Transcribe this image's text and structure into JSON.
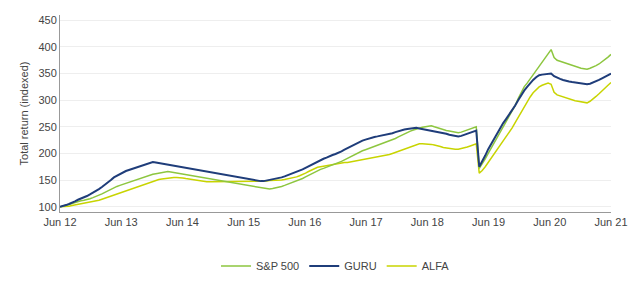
{
  "chart_data": {
    "type": "line",
    "ylabel": "Total return (indexed)",
    "x": [
      0,
      0.587,
      1.1739,
      1.7609,
      2.3478,
      2.9348,
      3.5217,
      4.1087,
      4.6957,
      5.2826,
      5.8696,
      6.4565,
      7.0435,
      7.6304,
      8.2174,
      8.8043,
      9.3913,
      9.9783,
      10.5652,
      11.1522,
      11.7391,
      12.3261,
      12.913,
      13.5,
      14.087,
      14.6739,
      15.2609,
      15.8478,
      16.4348,
      17.0217,
      17.6087,
      18.1957,
      18.7826,
      19.3696,
      19.9565,
      20.5435,
      21.1304,
      21.7174,
      22.3043,
      22.8913,
      23.4783,
      24.0652,
      24.6522,
      25.2391,
      25.8261,
      26.413,
      27,
      27.587,
      28.1739,
      28.7609,
      29.3478,
      29.9348,
      30.5217,
      31.1087,
      31.6957,
      32.2826,
      32.8696,
      33.4565,
      34.0435,
      34.6304,
      35.2174,
      35.8043,
      36.3913,
      36.9783,
      37.5652,
      38.1522,
      38.7391,
      39.3261,
      39.913,
      40.5,
      41.087,
      41.6739,
      42.2609,
      42.8478,
      43.4348,
      44.0217,
      44.6087,
      45.1957,
      45.7826,
      46.3696,
      46.9565,
      47.5435,
      48.1304,
      48.7174,
      49.3043,
      49.8913,
      50.4783,
      51.0652,
      51.6522,
      52.2391,
      52.8261,
      53.413,
      54,
      54.587,
      55.1739,
      55.7609,
      56.3478,
      56.9348,
      57.5217,
      58.1087,
      58.6957,
      59.2826,
      59.8696,
      60.4565,
      61.0435,
      61.6304,
      62.2174,
      62.8043,
      63.3913,
      63.9783,
      64.5652,
      65.1522,
      65.7391,
      66.3261,
      66.913,
      67.5,
      68.087,
      68.6739,
      69.2609,
      69.8478,
      70.4348,
      71.0217,
      71.6087,
      72.1957,
      72.7826,
      73.3696,
      73.9565,
      74.5435,
      75.1304,
      75.7174,
      76.3043,
      76.8913,
      77.4783,
      78.0652,
      78.6522,
      79.2391,
      79.8261,
      80.413,
      81,
      81.587,
      82.1739,
      82.7609,
      83.3478,
      83.9348,
      84.5217,
      85.1087,
      85.6957,
      86.2826,
      86.8696,
      87.4565,
      88.0435,
      88.6304,
      89.2174,
      89.8043,
      90.3913,
      90.9783,
      91.5652,
      92.1522,
      92.7391,
      93.3261,
      93.913,
      94.5,
      95.087,
      95.6739,
      96.2609,
      96.8478,
      97.4348,
      98.0217,
      98.6087,
      99.1957,
      99.7826,
      100.3696,
      100.9565,
      101.5435,
      102.1304,
      102.7174,
      103.3043,
      103.8913,
      104.4783,
      105.0652,
      105.6522,
      106.2391,
      106.8261,
      107.413,
      108
    ],
    "xlim": [
      0,
      108
    ],
    "xticks": [
      {
        "value": 0,
        "label": "Jun 12"
      },
      {
        "value": 12,
        "label": "Jun 13"
      },
      {
        "value": 24,
        "label": "Jun 14"
      },
      {
        "value": 36,
        "label": "Jun 15"
      },
      {
        "value": 48,
        "label": "Jun 16"
      },
      {
        "value": 60,
        "label": "Jun 17"
      },
      {
        "value": 72,
        "label": "Jun 18"
      },
      {
        "value": 84,
        "label": "Jun 19"
      },
      {
        "value": 96,
        "label": "Jun 20"
      },
      {
        "value": 108,
        "label": "Jun 21"
      }
    ],
    "ylim": [
      90,
      460
    ],
    "yticks": [
      100,
      150,
      200,
      250,
      300,
      350,
      400,
      450
    ],
    "grid": true,
    "legend": "bottom",
    "series": [
      {
        "name": "S&P 500",
        "color": "#8DC63F",
        "values": [
          100,
          101,
          102,
          104,
          106,
          108,
          110,
          111,
          112,
          113,
          115,
          117,
          119,
          121,
          124,
          127,
          130,
          133,
          136,
          138,
          140,
          142,
          144,
          146,
          148,
          150,
          152,
          154,
          156,
          158,
          160,
          161,
          162,
          163,
          164,
          165,
          166,
          165,
          164,
          163,
          162,
          161,
          160,
          159,
          158,
          157,
          156,
          155,
          154,
          153,
          152,
          151,
          150,
          149,
          148,
          147,
          146,
          145,
          144,
          143,
          142,
          141,
          140,
          139,
          138,
          137,
          136,
          135,
          134,
          133,
          133,
          134,
          135,
          136,
          138,
          140,
          142,
          144,
          146,
          148,
          150,
          153,
          156,
          159,
          162,
          165,
          168,
          170,
          172,
          174,
          176,
          178,
          180,
          182,
          185,
          188,
          191,
          194,
          197,
          200,
          203,
          205,
          207,
          209,
          211,
          213,
          215,
          217,
          219,
          221,
          223,
          225,
          228,
          231,
          234,
          237,
          240,
          242,
          244,
          246,
          248,
          249,
          250,
          251,
          252,
          250,
          248,
          246,
          244,
          243,
          242,
          241,
          240,
          239,
          240,
          242,
          244,
          246,
          248,
          250,
          172,
          180,
          190,
          200,
          210,
          218,
          228,
          238,
          248,
          258,
          268,
          278,
          290,
          303,
          315,
          325,
          332,
          340,
          348,
          355,
          363,
          370,
          378,
          386,
          395,
          380,
          375,
          373,
          371,
          369,
          367,
          365,
          363,
          361,
          360,
          359,
          358,
          360,
          362,
          365,
          368,
          372,
          376,
          381,
          386
        ]
      },
      {
        "name": "GURU",
        "color": "#1F3D7A",
        "values": [
          100,
          101,
          103,
          105,
          107,
          110,
          113,
          115,
          117,
          120,
          123,
          126,
          129,
          133,
          137,
          141,
          145,
          150,
          155,
          158,
          162,
          165,
          167,
          169,
          171,
          173,
          175,
          177,
          179,
          181,
          183,
          184,
          183,
          182,
          181,
          180,
          179,
          178,
          177,
          176,
          175,
          174,
          173,
          172,
          171,
          170,
          169,
          168,
          167,
          166,
          165,
          164,
          163,
          162,
          161,
          160,
          159,
          158,
          157,
          156,
          155,
          154,
          153,
          152,
          151,
          150,
          149,
          148,
          148,
          149,
          150,
          151,
          152,
          153,
          155,
          157,
          159,
          161,
          163,
          165,
          167,
          170,
          173,
          176,
          179,
          182,
          185,
          187,
          190,
          192,
          195,
          197,
          199,
          201,
          204,
          207,
          210,
          213,
          216,
          219,
          222,
          224,
          226,
          228,
          230,
          231,
          232,
          233,
          234,
          235,
          236,
          238,
          240,
          242,
          244,
          245,
          246,
          247,
          248,
          248,
          247,
          246,
          245,
          244,
          243,
          242,
          241,
          240,
          238,
          237,
          235,
          234,
          233,
          232,
          233,
          235,
          237,
          239,
          241,
          243,
          175,
          185,
          196,
          208,
          218,
          228,
          238,
          248,
          257,
          265,
          273,
          280,
          290,
          300,
          310,
          318,
          325,
          332,
          338,
          343,
          347,
          348,
          349,
          350,
          350,
          345,
          342,
          340,
          338,
          336,
          335,
          334,
          333,
          332,
          331,
          330,
          330,
          331,
          333,
          335,
          338,
          341,
          344,
          347,
          350
        ]
      },
      {
        "name": "ALFA",
        "color": "#C8D400",
        "values": [
          100,
          100,
          101,
          101,
          102,
          103,
          104,
          105,
          106,
          107,
          108,
          109,
          110,
          112,
          114,
          116,
          118,
          120,
          122,
          124,
          126,
          128,
          130,
          132,
          134,
          136,
          138,
          140,
          142,
          144,
          146,
          148,
          150,
          151,
          152,
          153,
          154,
          155,
          155,
          155,
          155,
          154,
          153,
          152,
          151,
          150,
          149,
          148,
          147,
          147,
          147,
          147,
          147,
          147,
          147,
          147,
          147,
          147,
          147,
          147,
          147,
          147,
          147,
          147,
          147,
          148,
          148,
          148,
          148,
          148,
          149,
          149,
          149,
          149,
          150,
          151,
          152,
          153,
          154,
          156,
          158,
          160,
          163,
          166,
          169,
          172,
          174,
          175,
          176,
          177,
          178,
          180,
          181,
          182,
          183,
          183,
          183,
          184,
          185,
          186,
          187,
          188,
          189,
          190,
          191,
          192,
          193,
          194,
          195,
          196,
          198,
          200,
          202,
          204,
          206,
          208,
          210,
          212,
          214,
          216,
          218,
          218,
          218,
          218,
          217,
          216,
          215,
          213,
          211,
          210,
          209,
          208,
          208,
          208,
          209,
          210,
          212,
          214,
          216,
          218,
          163,
          168,
          175,
          183,
          192,
          200,
          208,
          216,
          224,
          232,
          240,
          248,
          258,
          268,
          278,
          288,
          298,
          306,
          314,
          320,
          325,
          328,
          330,
          332,
          330,
          315,
          310,
          308,
          306,
          304,
          302,
          300,
          299,
          298,
          297,
          296,
          295,
          298,
          302,
          307,
          312,
          318,
          324,
          328,
          333
        ]
      }
    ]
  }
}
